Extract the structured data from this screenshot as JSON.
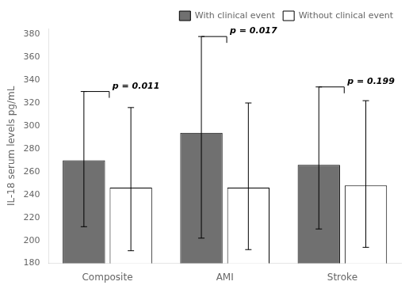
{
  "chart_data": {
    "type": "bar",
    "categories": [
      "Composite",
      "AMI",
      "Stroke"
    ],
    "series": [
      {
        "name": "With clinical event",
        "color": "#707070",
        "values": [
          270,
          294,
          266
        ],
        "error_low": [
          212,
          202,
          210
        ],
        "error_high": [
          330,
          378,
          334
        ]
      },
      {
        "name": "Without clinical event",
        "color": "#ffffff",
        "values": [
          246,
          246,
          248
        ],
        "error_low": [
          191,
          192,
          194
        ],
        "error_high": [
          316,
          320,
          322
        ]
      }
    ],
    "annotations": [
      "p = 0.011",
      "p = 0.017",
      "p = 0.199"
    ],
    "ylabel": "IL-18 serum levels pg/mL",
    "ylim": [
      180,
      385
    ],
    "yticks": [
      180,
      200,
      220,
      240,
      260,
      280,
      300,
      320,
      340,
      360,
      380
    ],
    "grid": false,
    "legend": "upper right"
  }
}
